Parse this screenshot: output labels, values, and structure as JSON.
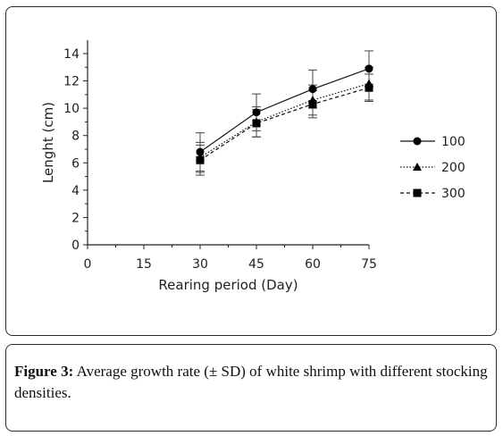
{
  "chart_data": {
    "type": "line",
    "xlabel": "Rearing period (Day)",
    "ylabel": "Lenght (cm)",
    "xlim": [
      0,
      75
    ],
    "ylim": [
      0,
      14
    ],
    "xticks": [
      0,
      15,
      30,
      45,
      60,
      75
    ],
    "yticks": [
      0,
      2,
      4,
      6,
      8,
      10,
      12,
      14
    ],
    "grid": false,
    "legend_position": "right",
    "x": [
      30,
      45,
      60,
      75
    ],
    "series": [
      {
        "name": "100",
        "marker": "circle",
        "line": "solid",
        "values": [
          6.8,
          9.7,
          11.4,
          12.9
        ],
        "error": [
          1.4,
          1.35,
          1.4,
          1.3
        ]
      },
      {
        "name": "200",
        "marker": "triangle",
        "line": "dotted",
        "values": [
          6.4,
          9.0,
          10.6,
          11.8
        ],
        "error": [
          1.1,
          1.1,
          1.1,
          1.2
        ]
      },
      {
        "name": "300",
        "marker": "square",
        "line": "dashed",
        "values": [
          6.2,
          8.9,
          10.3,
          11.5
        ],
        "error": [
          1.1,
          1.0,
          1.0,
          1.0
        ]
      }
    ]
  },
  "caption": {
    "label": "Figure 3:",
    "text": " Average growth rate (± SD) of white shrimp with different stocking densities."
  }
}
